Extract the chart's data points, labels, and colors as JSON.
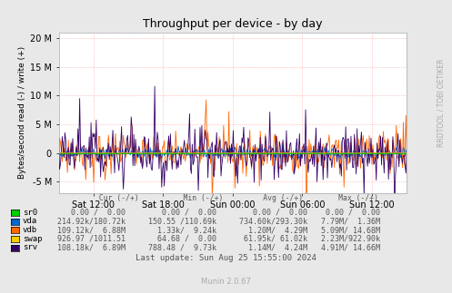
{
  "title": "Throughput per device - by day",
  "ylabel": "Bytes/second read (-) / write (+)",
  "right_label": "RRDTOOL / TOBI OETIKER",
  "background_color": "#e8e8e8",
  "plot_bg_color": "#ffffff",
  "grid_color": "#ff9999",
  "ylim": [
    -7000000,
    21000000
  ],
  "yticks": [
    -5000000,
    0,
    5000000,
    10000000,
    15000000,
    20000000
  ],
  "ytick_labels": [
    "-5 M",
    "0",
    "5 M",
    "10 M",
    "15 M",
    "20 M"
  ],
  "xtick_labels": [
    "Sat 12:00",
    "Sat 18:00",
    "Sun 00:00",
    "Sun 06:00",
    "Sun 12:00"
  ],
  "colors": {
    "sr0": "#00cc00",
    "vda": "#0066cc",
    "vdb": "#ff6600",
    "swap": "#ffcc00",
    "srv": "#330066"
  },
  "table_rows": [
    {
      "name": "sr0",
      "cur": "0.00 /  0.00",
      "min": "0.00 /  0.00",
      "avg": "0.00 /  0.00",
      "max": "0.00 /  0.00"
    },
    {
      "name": "vda",
      "cur": "214.92k/180.72k",
      "min": "150.55 /110.69k",
      "avg": "734.60k/293.30k",
      "max": "7.79M/  1.36M"
    },
    {
      "name": "vdb",
      "cur": "109.12k/  6.88M",
      "min": "1.33k/  9.24k",
      "avg": "1.20M/  4.29M",
      "max": "5.09M/ 14.68M"
    },
    {
      "name": "swap",
      "cur": "926.97 /1011.51",
      "min": "64.68 /  0.00",
      "avg": "61.95k/ 61.02k",
      "max": "2.23M/922.90k"
    },
    {
      "name": "srv",
      "cur": "108.18k/  6.89M",
      "min": "788.48 /  9.73k",
      "avg": "1.14M/  4.24M",
      "max": "4.91M/ 14.66M"
    }
  ],
  "last_update": "Last update: Sun Aug 25 15:55:00 2024",
  "munin_version": "Munin 2.0.67",
  "n_points": 400,
  "seed": 42
}
